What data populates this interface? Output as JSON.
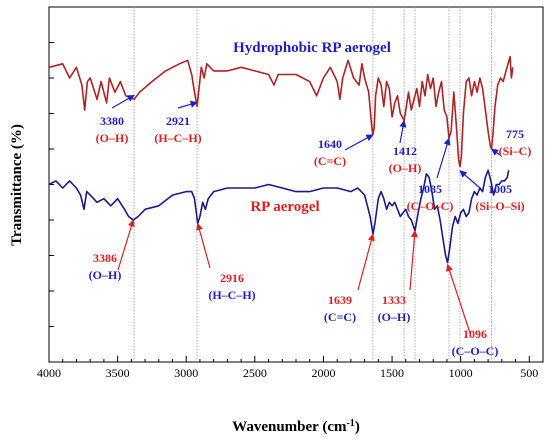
{
  "chart_data": {
    "type": "line",
    "xlabel": "Wavenumber (cm",
    "xlabel_sup": "-1",
    "xlabel_close": ")",
    "ylabel": "Transmittance (%)",
    "xlim": [
      4000,
      400
    ],
    "x_reversed": true,
    "xticks": [
      "4000",
      "3500",
      "3000",
      "2500",
      "2000",
      "1500",
      "1000",
      "500"
    ],
    "y_tick_labels_shown": false,
    "y_scale": "arbitrary units",
    "reference_lines_x": [
      3380,
      2921,
      1640,
      1412,
      1333,
      1085,
      1005,
      775
    ],
    "series": [
      {
        "name": "Hydrophobic RP aerogel",
        "color": "#b22222",
        "label_color": "#1f1fc8",
        "points": [
          [
            4000,
            8.3
          ],
          [
            3900,
            8.4
          ],
          [
            3850,
            8.0
          ],
          [
            3800,
            8.3
          ],
          [
            3760,
            7.8
          ],
          [
            3740,
            7.1
          ],
          [
            3720,
            7.9
          ],
          [
            3700,
            8.0
          ],
          [
            3650,
            7.4
          ],
          [
            3620,
            7.9
          ],
          [
            3580,
            7.3
          ],
          [
            3560,
            8.0
          ],
          [
            3520,
            7.6
          ],
          [
            3480,
            7.9
          ],
          [
            3440,
            7.5
          ],
          [
            3380,
            7.4
          ],
          [
            3340,
            7.6
          ],
          [
            3250,
            7.9
          ],
          [
            3150,
            8.2
          ],
          [
            3050,
            8.4
          ],
          [
            2990,
            8.5
          ],
          [
            2960,
            8.1
          ],
          [
            2940,
            7.6
          ],
          [
            2921,
            7.2
          ],
          [
            2910,
            7.6
          ],
          [
            2890,
            8.3
          ],
          [
            2870,
            8.0
          ],
          [
            2850,
            8.4
          ],
          [
            2800,
            8.2
          ],
          [
            2700,
            8.2
          ],
          [
            2600,
            8.3
          ],
          [
            2500,
            8.2
          ],
          [
            2400,
            8.1
          ],
          [
            2360,
            7.8
          ],
          [
            2330,
            8.1
          ],
          [
            2200,
            8.1
          ],
          [
            2100,
            7.9
          ],
          [
            2050,
            7.5
          ],
          [
            2000,
            8.0
          ],
          [
            1950,
            8.3
          ],
          [
            1900,
            7.9
          ],
          [
            1880,
            7.4
          ],
          [
            1860,
            8.0
          ],
          [
            1820,
            8.5
          ],
          [
            1780,
            8.0
          ],
          [
            1740,
            7.8
          ],
          [
            1720,
            8.4
          ],
          [
            1700,
            8.0
          ],
          [
            1670,
            7.6
          ],
          [
            1650,
            6.7
          ],
          [
            1640,
            6.4
          ],
          [
            1630,
            6.6
          ],
          [
            1620,
            7.5
          ],
          [
            1600,
            8.0
          ],
          [
            1580,
            7.8
          ],
          [
            1560,
            7.2
          ],
          [
            1540,
            7.9
          ],
          [
            1520,
            7.7
          ],
          [
            1500,
            6.9
          ],
          [
            1480,
            7.3
          ],
          [
            1460,
            7.5
          ],
          [
            1440,
            7.0
          ],
          [
            1425,
            6.9
          ],
          [
            1412,
            6.8
          ],
          [
            1400,
            7.1
          ],
          [
            1380,
            7.6
          ],
          [
            1360,
            7.1
          ],
          [
            1340,
            7.4
          ],
          [
            1320,
            7.7
          ],
          [
            1300,
            7.2
          ],
          [
            1280,
            7.9
          ],
          [
            1260,
            7.5
          ],
          [
            1240,
            8.1
          ],
          [
            1220,
            7.7
          ],
          [
            1200,
            8.0
          ],
          [
            1180,
            7.2
          ],
          [
            1160,
            7.6
          ],
          [
            1140,
            7.9
          ],
          [
            1120,
            7.1
          ],
          [
            1100,
            6.9
          ],
          [
            1085,
            6.3
          ],
          [
            1070,
            6.5
          ],
          [
            1050,
            7.6
          ],
          [
            1030,
            6.6
          ],
          [
            1015,
            5.7
          ],
          [
            1005,
            5.5
          ],
          [
            995,
            5.8
          ],
          [
            980,
            7.0
          ],
          [
            960,
            7.9
          ],
          [
            940,
            8.0
          ],
          [
            920,
            7.5
          ],
          [
            900,
            7.9
          ],
          [
            880,
            7.6
          ],
          [
            860,
            8.0
          ],
          [
            840,
            7.7
          ],
          [
            820,
            7.1
          ],
          [
            800,
            6.5
          ],
          [
            785,
            6.1
          ],
          [
            775,
            6.0
          ],
          [
            765,
            6.4
          ],
          [
            750,
            7.2
          ],
          [
            730,
            7.8
          ],
          [
            710,
            8.0
          ],
          [
            690,
            7.9
          ],
          [
            670,
            8.2
          ],
          [
            655,
            8.4
          ],
          [
            640,
            8.6
          ],
          [
            630,
            8.0
          ],
          [
            620,
            8.3
          ]
        ],
        "annotations": [
          {
            "wavenumber": "3380",
            "group": "(O–H)",
            "at": 3380
          },
          {
            "wavenumber": "2921",
            "group": "(H–C–H)",
            "at": 2921
          },
          {
            "wavenumber": "1640",
            "group": "(C=C)",
            "at": 1640
          },
          {
            "wavenumber": "1412",
            "group": "(O–H)",
            "at": 1412
          },
          {
            "wavenumber": "1085",
            "group": "(C–O–C)",
            "at": 1085
          },
          {
            "wavenumber": "1005",
            "group": "(Si–O–Si)",
            "at": 1005
          },
          {
            "wavenumber": "775",
            "group": "(Si–C)",
            "at": 775
          }
        ]
      },
      {
        "name": "RP aerogel",
        "color": "#1a1a8c",
        "label_color": "#e02020",
        "points": [
          [
            4000,
            5.0
          ],
          [
            3950,
            5.1
          ],
          [
            3900,
            4.9
          ],
          [
            3850,
            5.1
          ],
          [
            3800,
            4.9
          ],
          [
            3770,
            4.7
          ],
          [
            3745,
            4.3
          ],
          [
            3725,
            4.8
          ],
          [
            3700,
            4.7
          ],
          [
            3650,
            4.5
          ],
          [
            3600,
            4.6
          ],
          [
            3550,
            4.4
          ],
          [
            3500,
            4.6
          ],
          [
            3450,
            4.3
          ],
          [
            3420,
            4.1
          ],
          [
            3386,
            4.0
          ],
          [
            3350,
            4.1
          ],
          [
            3300,
            4.3
          ],
          [
            3200,
            4.4
          ],
          [
            3100,
            4.7
          ],
          [
            3000,
            4.8
          ],
          [
            2960,
            4.8
          ],
          [
            2940,
            4.6
          ],
          [
            2916,
            3.9
          ],
          [
            2900,
            4.1
          ],
          [
            2880,
            4.5
          ],
          [
            2860,
            4.3
          ],
          [
            2840,
            4.6
          ],
          [
            2800,
            4.8
          ],
          [
            2700,
            4.9
          ],
          [
            2600,
            4.9
          ],
          [
            2500,
            4.9
          ],
          [
            2400,
            5.0
          ],
          [
            2300,
            4.9
          ],
          [
            2200,
            4.8
          ],
          [
            2100,
            4.8
          ],
          [
            2000,
            4.9
          ],
          [
            1900,
            4.9
          ],
          [
            1800,
            4.8
          ],
          [
            1750,
            4.9
          ],
          [
            1700,
            4.7
          ],
          [
            1680,
            4.4
          ],
          [
            1660,
            4.1
          ],
          [
            1639,
            3.6
          ],
          [
            1625,
            3.9
          ],
          [
            1600,
            4.6
          ],
          [
            1580,
            4.8
          ],
          [
            1560,
            4.6
          ],
          [
            1540,
            4.3
          ],
          [
            1520,
            4.5
          ],
          [
            1500,
            4.4
          ],
          [
            1480,
            4.5
          ],
          [
            1460,
            4.3
          ],
          [
            1440,
            4.1
          ],
          [
            1420,
            4.2
          ],
          [
            1400,
            4.3
          ],
          [
            1380,
            4.1
          ],
          [
            1360,
            4.0
          ],
          [
            1333,
            3.7
          ],
          [
            1310,
            4.2
          ],
          [
            1290,
            4.6
          ],
          [
            1270,
            4.9
          ],
          [
            1250,
            5.3
          ],
          [
            1230,
            5.2
          ],
          [
            1210,
            4.8
          ],
          [
            1190,
            4.3
          ],
          [
            1170,
            4.4
          ],
          [
            1150,
            4.0
          ],
          [
            1130,
            3.5
          ],
          [
            1110,
            3.0
          ],
          [
            1096,
            2.8
          ],
          [
            1080,
            3.2
          ],
          [
            1060,
            3.8
          ],
          [
            1040,
            4.1
          ],
          [
            1020,
            3.9
          ],
          [
            1000,
            4.2
          ],
          [
            980,
            4.3
          ],
          [
            960,
            4.1
          ],
          [
            940,
            4.2
          ],
          [
            920,
            4.6
          ],
          [
            900,
            4.8
          ],
          [
            880,
            4.7
          ],
          [
            860,
            4.9
          ],
          [
            840,
            4.8
          ],
          [
            820,
            5.2
          ],
          [
            800,
            5.4
          ],
          [
            780,
            5.1
          ],
          [
            760,
            4.7
          ],
          [
            740,
            5.0
          ],
          [
            720,
            5.0
          ],
          [
            700,
            5.1
          ],
          [
            680,
            5.1
          ],
          [
            660,
            5.2
          ],
          [
            650,
            5.4
          ]
        ],
        "annotations": [
          {
            "wavenumber": "3386",
            "group": "(O–H)",
            "at": 3386
          },
          {
            "wavenumber": "2916",
            "group": "(H–C–H)",
            "at": 2916
          },
          {
            "wavenumber": "1639",
            "group": "(C=C)",
            "at": 1639
          },
          {
            "wavenumber": "1333",
            "group": "(O–H)",
            "at": 1333
          },
          {
            "wavenumber": "1096",
            "group": "(C–O–C)",
            "at": 1096
          }
        ]
      }
    ]
  }
}
